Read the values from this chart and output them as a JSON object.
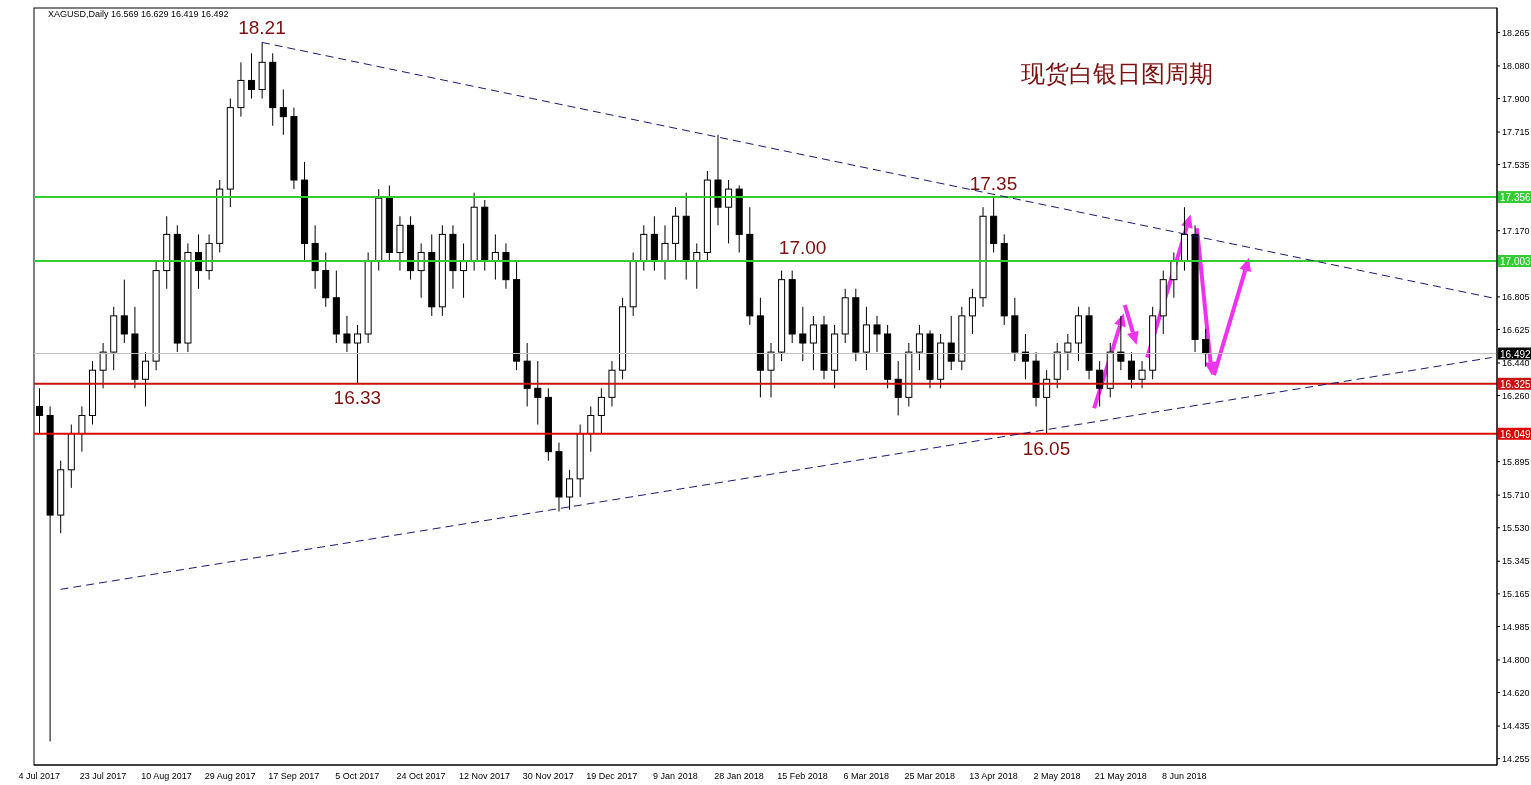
{
  "chart_data": {
    "type": "candlestick",
    "title": "现货白银日图周期",
    "subtitle": "XAGUSD,Daily 16.569 16.629 16.419 16.492",
    "annotations": [
      {
        "text": "18.21",
        "y": 18.21
      },
      {
        "text": "17.35",
        "y": 17.35
      },
      {
        "text": "17.00",
        "y": 17.0
      },
      {
        "text": "16.33",
        "y": 16.33
      },
      {
        "text": "16.05",
        "y": 16.05
      }
    ],
    "categories": [
      "4 Jul 2017",
      null,
      null,
      null,
      null,
      null,
      "23 Jul 2017",
      null,
      null,
      null,
      null,
      null,
      "10 Aug 2017",
      null,
      null,
      null,
      null,
      null,
      "29 Aug 2017",
      null,
      null,
      null,
      null,
      null,
      "17 Sep 2017",
      null,
      null,
      null,
      null,
      null,
      "5 Oct 2017",
      null,
      null,
      null,
      null,
      null,
      "24 Oct 2017",
      null,
      null,
      null,
      null,
      null,
      "12 Nov 2017",
      null,
      null,
      null,
      null,
      null,
      "30 Nov 2017",
      null,
      null,
      null,
      null,
      null,
      "19 Dec 2017",
      null,
      null,
      null,
      null,
      null,
      "9 Jan 2018",
      null,
      null,
      null,
      null,
      null,
      "28 Jan 2018",
      null,
      null,
      null,
      null,
      null,
      "15 Feb 2018",
      null,
      null,
      null,
      null,
      null,
      "6 Mar 2018",
      null,
      null,
      null,
      null,
      null,
      "25 Mar 2018",
      null,
      null,
      null,
      null,
      null,
      "13 Apr 2018",
      null,
      null,
      null,
      null,
      null,
      "2 May 2018",
      null,
      null,
      null,
      null,
      null,
      "21 May 2018",
      null,
      null,
      null,
      null,
      null,
      "8 Jun 2018",
      null,
      null,
      null,
      null,
      null,
      null,
      null,
      null,
      null,
      null,
      null,
      null,
      null,
      null,
      null,
      null,
      null,
      null,
      null,
      null,
      null,
      null,
      null,
      null,
      null,
      null,
      null,
      null,
      null
    ],
    "color": "#000000",
    "ohlc": [
      [
        16.2,
        16.3,
        16.05,
        16.15
      ],
      [
        16.15,
        16.2,
        14.35,
        15.6
      ],
      [
        15.6,
        15.9,
        15.5,
        15.85
      ],
      [
        15.85,
        16.1,
        15.75,
        16.05
      ],
      [
        16.05,
        16.2,
        15.95,
        16.15
      ],
      [
        16.15,
        16.45,
        16.1,
        16.4
      ],
      [
        16.4,
        16.55,
        16.3,
        16.5
      ],
      [
        16.5,
        16.75,
        16.4,
        16.7
      ],
      [
        16.7,
        16.9,
        16.55,
        16.6
      ],
      [
        16.6,
        16.75,
        16.3,
        16.35
      ],
      [
        16.35,
        16.5,
        16.2,
        16.45
      ],
      [
        16.45,
        17.0,
        16.4,
        16.95
      ],
      [
        16.95,
        17.25,
        16.85,
        17.15
      ],
      [
        17.15,
        17.2,
        16.5,
        16.55
      ],
      [
        16.55,
        17.1,
        16.5,
        17.05
      ],
      [
        17.05,
        17.15,
        16.85,
        16.95
      ],
      [
        16.95,
        17.15,
        16.9,
        17.1
      ],
      [
        17.1,
        17.45,
        17.05,
        17.4
      ],
      [
        17.4,
        17.9,
        17.3,
        17.85
      ],
      [
        17.85,
        18.1,
        17.8,
        18.0
      ],
      [
        18.0,
        18.15,
        17.9,
        17.95
      ],
      [
        17.95,
        18.21,
        17.9,
        18.1
      ],
      [
        18.1,
        18.15,
        17.75,
        17.85
      ],
      [
        17.85,
        17.95,
        17.7,
        17.8
      ],
      [
        17.8,
        17.85,
        17.4,
        17.45
      ],
      [
        17.45,
        17.55,
        17.0,
        17.1
      ],
      [
        17.1,
        17.2,
        16.85,
        16.95
      ],
      [
        16.95,
        17.05,
        16.75,
        16.8
      ],
      [
        16.8,
        16.95,
        16.55,
        16.6
      ],
      [
        16.6,
        16.7,
        16.5,
        16.55
      ],
      [
        16.55,
        16.65,
        16.33,
        16.6
      ],
      [
        16.6,
        17.05,
        16.55,
        17.0
      ],
      [
        17.0,
        17.4,
        16.95,
        17.35
      ],
      [
        17.35,
        17.42,
        17.0,
        17.05
      ],
      [
        17.05,
        17.25,
        16.95,
        17.2
      ],
      [
        17.2,
        17.25,
        16.9,
        16.95
      ],
      [
        16.95,
        17.1,
        16.8,
        17.05
      ],
      [
        17.05,
        17.15,
        16.7,
        16.75
      ],
      [
        16.75,
        17.2,
        16.7,
        17.15
      ],
      [
        17.15,
        17.2,
        16.85,
        16.95
      ],
      [
        16.95,
        17.1,
        16.8,
        17.0
      ],
      [
        17.0,
        17.38,
        16.95,
        17.3
      ],
      [
        17.3,
        17.34,
        16.95,
        17.0
      ],
      [
        17.0,
        17.15,
        16.9,
        17.05
      ],
      [
        17.05,
        17.1,
        16.85,
        16.9
      ],
      [
        16.9,
        17.0,
        16.4,
        16.45
      ],
      [
        16.45,
        16.55,
        16.2,
        16.3
      ],
      [
        16.3,
        16.45,
        16.1,
        16.25
      ],
      [
        16.25,
        16.3,
        15.9,
        15.95
      ],
      [
        15.95,
        16.0,
        15.62,
        15.7
      ],
      [
        15.7,
        15.85,
        15.63,
        15.8
      ],
      [
        15.8,
        16.1,
        15.7,
        16.05
      ],
      [
        16.05,
        16.2,
        15.95,
        16.15
      ],
      [
        16.15,
        16.3,
        16.05,
        16.25
      ],
      [
        16.25,
        16.45,
        16.2,
        16.4
      ],
      [
        16.4,
        16.8,
        16.35,
        16.75
      ],
      [
        16.75,
        17.05,
        16.7,
        17.0
      ],
      [
        17.0,
        17.2,
        16.95,
        17.15
      ],
      [
        17.15,
        17.25,
        16.95,
        17.0
      ],
      [
        17.0,
        17.2,
        16.9,
        17.1
      ],
      [
        17.1,
        17.3,
        17.0,
        17.25
      ],
      [
        17.25,
        17.38,
        16.9,
        17.0
      ],
      [
        17.0,
        17.1,
        16.85,
        17.05
      ],
      [
        17.05,
        17.5,
        17.0,
        17.45
      ],
      [
        17.45,
        17.7,
        17.2,
        17.3
      ],
      [
        17.3,
        17.45,
        17.1,
        17.4
      ],
      [
        17.4,
        17.42,
        17.05,
        17.15
      ],
      [
        17.15,
        17.3,
        16.65,
        16.7
      ],
      [
        16.7,
        16.8,
        16.25,
        16.4
      ],
      [
        16.4,
        16.55,
        16.25,
        16.5
      ],
      [
        16.5,
        16.95,
        16.45,
        16.9
      ],
      [
        16.9,
        16.95,
        16.55,
        16.6
      ],
      [
        16.6,
        16.75,
        16.45,
        16.55
      ],
      [
        16.55,
        16.7,
        16.4,
        16.65
      ],
      [
        16.65,
        16.7,
        16.35,
        16.4
      ],
      [
        16.4,
        16.65,
        16.3,
        16.6
      ],
      [
        16.6,
        16.85,
        16.55,
        16.8
      ],
      [
        16.8,
        16.85,
        16.45,
        16.5
      ],
      [
        16.5,
        16.75,
        16.4,
        16.65
      ],
      [
        16.65,
        16.7,
        16.5,
        16.6
      ],
      [
        16.6,
        16.65,
        16.3,
        16.35
      ],
      [
        16.35,
        16.45,
        16.15,
        16.25
      ],
      [
        16.25,
        16.55,
        16.2,
        16.5
      ],
      [
        16.5,
        16.65,
        16.4,
        16.6
      ],
      [
        16.6,
        16.62,
        16.3,
        16.35
      ],
      [
        16.35,
        16.6,
        16.3,
        16.55
      ],
      [
        16.55,
        16.7,
        16.4,
        16.45
      ],
      [
        16.45,
        16.75,
        16.4,
        16.7
      ],
      [
        16.7,
        16.85,
        16.6,
        16.8
      ],
      [
        16.8,
        17.3,
        16.75,
        17.25
      ],
      [
        17.25,
        17.35,
        17.05,
        17.1
      ],
      [
        17.1,
        17.15,
        16.65,
        16.7
      ],
      [
        16.7,
        16.8,
        16.45,
        16.5
      ],
      [
        16.5,
        16.6,
        16.35,
        16.45
      ],
      [
        16.45,
        16.5,
        16.2,
        16.25
      ],
      [
        16.25,
        16.4,
        16.05,
        16.35
      ],
      [
        16.35,
        16.55,
        16.3,
        16.5
      ],
      [
        16.5,
        16.6,
        16.4,
        16.55
      ],
      [
        16.55,
        16.75,
        16.45,
        16.7
      ],
      [
        16.7,
        16.75,
        16.35,
        16.4
      ],
      [
        16.4,
        16.45,
        16.2,
        16.3
      ],
      [
        16.3,
        16.55,
        16.25,
        16.5
      ],
      [
        16.5,
        16.7,
        16.4,
        16.45
      ],
      [
        16.45,
        16.5,
        16.3,
        16.35
      ],
      [
        16.35,
        16.45,
        16.3,
        16.4
      ],
      [
        16.4,
        16.75,
        16.35,
        16.7
      ],
      [
        16.7,
        16.95,
        16.6,
        16.9
      ],
      [
        16.9,
        17.05,
        16.8,
        17.0
      ],
      [
        17.0,
        17.3,
        16.95,
        17.15
      ],
      [
        17.15,
        17.2,
        16.5,
        16.57
      ],
      [
        16.569,
        16.629,
        16.419,
        16.492
      ],
      null,
      null,
      null,
      null,
      null,
      null,
      null,
      null,
      null,
      null,
      null,
      null,
      null,
      null,
      null,
      null,
      null,
      null,
      null,
      null,
      null,
      null,
      null,
      null,
      null,
      null,
      null
    ],
    "series": [
      {
        "type": "line",
        "color": "#1a1a6e",
        "line_style": "dashed",
        "values": [
          null,
          null,
          null,
          null,
          null,
          null,
          null,
          null,
          null,
          null,
          null,
          null,
          null,
          null,
          null,
          null,
          null,
          null,
          null,
          null,
          null,
          18.21,
          null,
          null,
          null,
          null,
          null,
          null,
          null,
          null,
          null,
          null,
          null,
          null,
          null,
          null,
          null,
          null,
          null,
          null,
          null,
          null,
          null,
          null,
          null,
          null,
          null,
          null,
          null,
          null,
          null,
          null,
          null,
          null,
          null,
          null,
          null,
          null,
          null,
          null,
          null,
          null,
          null,
          null,
          null,
          null,
          null,
          null,
          null,
          null,
          null,
          null,
          null,
          null,
          null,
          null,
          null,
          null,
          null,
          null,
          null,
          null,
          null,
          null,
          null,
          null,
          null,
          null,
          null,
          null,
          null,
          null,
          null,
          null,
          null,
          null,
          null,
          null,
          null,
          null,
          null,
          null,
          null,
          null,
          null,
          null,
          null,
          null,
          null,
          null,
          null,
          null,
          null,
          null,
          null,
          null,
          null,
          null,
          null,
          null,
          null,
          null,
          null,
          null,
          null,
          null,
          null,
          null,
          null,
          null,
          null,
          null,
          null,
          null,
          null,
          null,
          null,
          16.8
        ]
      },
      {
        "type": "line",
        "color": "#1a1a6e",
        "line_style": "dashed",
        "values": [
          null,
          null,
          15.19,
          null,
          null,
          null,
          null,
          null,
          null,
          null,
          null,
          null,
          null,
          null,
          null,
          null,
          null,
          null,
          null,
          null,
          null,
          null,
          null,
          null,
          null,
          null,
          null,
          null,
          null,
          null,
          null,
          null,
          null,
          null,
          null,
          null,
          null,
          null,
          null,
          null,
          null,
          null,
          null,
          null,
          null,
          null,
          null,
          null,
          null,
          null,
          null,
          null,
          null,
          null,
          null,
          null,
          null,
          null,
          null,
          null,
          null,
          null,
          null,
          null,
          null,
          null,
          null,
          null,
          null,
          null,
          null,
          null,
          null,
          null,
          null,
          null,
          null,
          null,
          null,
          null,
          null,
          null,
          null,
          null,
          null,
          null,
          null,
          null,
          null,
          null,
          null,
          null,
          null,
          null,
          null,
          null,
          null,
          null,
          null,
          null,
          null,
          null,
          null,
          null,
          null,
          null,
          null,
          null,
          null,
          null,
          null,
          null,
          null,
          null,
          null,
          null,
          null,
          null,
          null,
          null,
          null,
          null,
          null,
          null,
          null,
          null,
          null,
          null,
          null,
          null,
          null,
          null,
          null,
          null,
          null,
          null,
          null,
          16.47
        ]
      }
    ],
    "ylim": [
      14.22,
      18.4
    ],
    "yticks": [
      14.255,
      {
        "value": 14.435,
        "label": "14.435"
      },
      {
        "value": 14.62,
        "label": "14.620"
      },
      {
        "value": 14.8,
        "label": "14.800"
      },
      14.985,
      15.165,
      15.345,
      {
        "value": 15.53,
        "label": "15.530"
      },
      {
        "value": 15.71,
        "label": "15.710"
      },
      15.895,
      {
        "value": 16.26,
        "label": "16.260"
      },
      {
        "value": 16.44,
        "label": "16.440"
      },
      16.625,
      16.805,
      {
        "value": 17.17,
        "label": "17.170"
      },
      17.535,
      17.715,
      {
        "value": 17.9,
        "label": "17.900"
      },
      {
        "value": 18.08,
        "label": "18.080"
      },
      18.265
    ],
    "ref_lines": [
      {
        "axis": "y",
        "value": 17.356,
        "label": "17.356",
        "color": "#33cc33"
      },
      {
        "axis": "y",
        "value": 17.003,
        "label": "17.003",
        "color": "#33cc33"
      },
      {
        "axis": "y",
        "value": 16.492,
        "label": "16.492",
        "color": "#c0c0c0"
      },
      {
        "axis": "y",
        "value": 16.325,
        "label": "16.325",
        "color": "#cc1111"
      },
      {
        "axis": "y",
        "value": 16.049,
        "label": "16.049",
        "color": "#dd0000"
      }
    ],
    "grid": false
  }
}
